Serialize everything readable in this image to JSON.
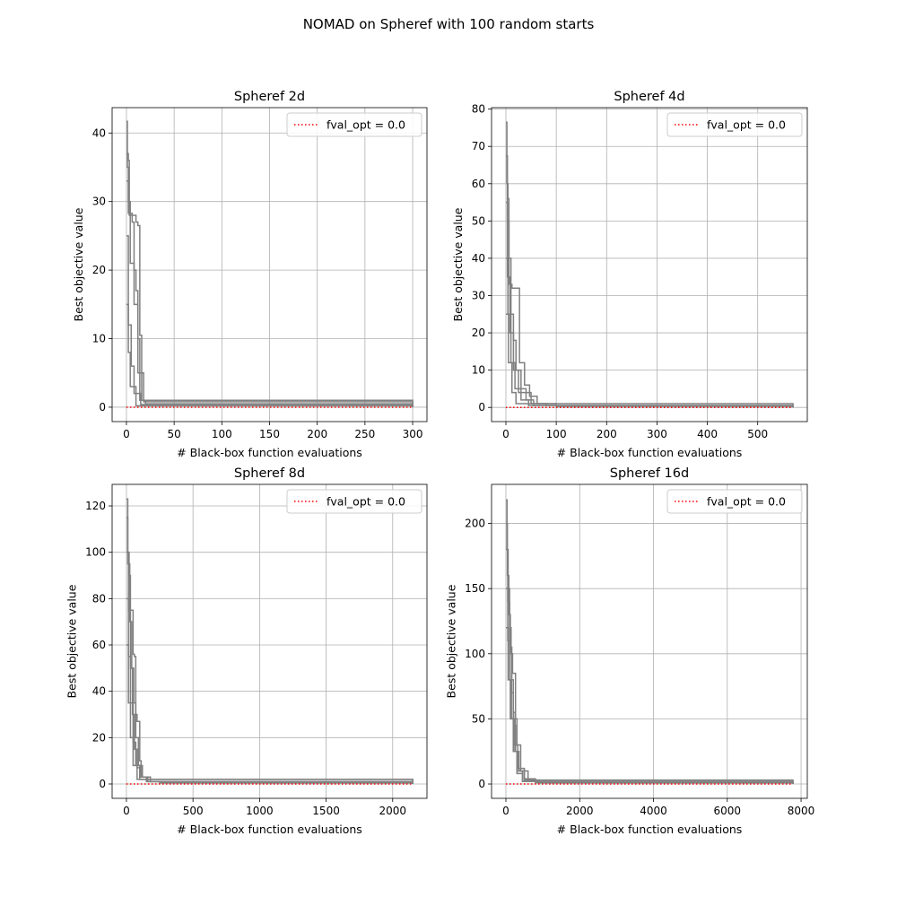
{
  "figure": {
    "suptitle": "NOMAD on Spheref with 100 random starts"
  },
  "chart_data": [
    {
      "type": "line",
      "title": "Spheref 2d",
      "xlabel": "# Black-box function evaluations",
      "ylabel": "Best objective value",
      "xlim": [
        -15,
        315
      ],
      "ylim": [
        -2.1,
        43.7
      ],
      "xticks": [
        0,
        50,
        100,
        150,
        200,
        250,
        300
      ],
      "yticks": [
        0,
        10,
        20,
        30,
        40
      ],
      "grid": true,
      "legend": {
        "position": "top-right",
        "entries": [
          {
            "label": "fval_opt = 0.0",
            "color": "#ff0000",
            "style": "dotted"
          }
        ]
      },
      "series": [
        {
          "color": "#808080",
          "values": [
            [
              0,
              41.7
            ],
            [
              1,
              37
            ],
            [
              2,
              36
            ],
            [
              3,
              28
            ],
            [
              10,
              27
            ],
            [
              12,
              26.5
            ],
            [
              14,
              10.5
            ],
            [
              16,
              1
            ],
            [
              20,
              0.5
            ],
            [
              300,
              0
            ]
          ]
        },
        {
          "color": "#808080",
          "values": [
            [
              0,
              37
            ],
            [
              1,
              35
            ],
            [
              2,
              28.3
            ],
            [
              4,
              28.3
            ],
            [
              6,
              27
            ],
            [
              8,
              20
            ],
            [
              10,
              17
            ],
            [
              12,
              10
            ],
            [
              14,
              1
            ],
            [
              300,
              0
            ]
          ]
        },
        {
          "color": "#808080",
          "values": [
            [
              0,
              33
            ],
            [
              2,
              30
            ],
            [
              4,
              21
            ],
            [
              8,
              15
            ],
            [
              12,
              5
            ],
            [
              18,
              0.8
            ],
            [
              300,
              0
            ]
          ]
        },
        {
          "color": "#808080",
          "values": [
            [
              0,
              25
            ],
            [
              2,
              12
            ],
            [
              5,
              6
            ],
            [
              8,
              2
            ],
            [
              15,
              0.4
            ],
            [
              300,
              0
            ]
          ]
        },
        {
          "color": "#808080",
          "values": [
            [
              0,
              15
            ],
            [
              2,
              8
            ],
            [
              4,
              3
            ],
            [
              10,
              0.2
            ],
            [
              300,
              0
            ]
          ]
        },
        {
          "color": "#ff0000",
          "style": "dotted",
          "values": [
            [
              0,
              0
            ],
            [
              300,
              0
            ]
          ]
        }
      ]
    },
    {
      "type": "line",
      "title": "Spheref 4d",
      "xlabel": "# Black-box function evaluations",
      "ylabel": "Best objective value",
      "xlim": [
        -28.5,
        598.5
      ],
      "ylim": [
        -3.8,
        80.4
      ],
      "xticks": [
        0,
        100,
        200,
        300,
        400,
        500
      ],
      "yticks": [
        0,
        10,
        20,
        30,
        40,
        50,
        60,
        70,
        80
      ],
      "grid": true,
      "legend": {
        "position": "top-right",
        "entries": [
          {
            "label": "fval_opt = 0.0",
            "color": "#ff0000",
            "style": "dotted"
          }
        ]
      },
      "series": [
        {
          "color": "#808080",
          "values": [
            [
              0,
              76.5
            ],
            [
              2,
              60
            ],
            [
              4,
              56
            ],
            [
              6,
              33
            ],
            [
              12,
              32
            ],
            [
              25,
              32
            ],
            [
              27,
              12
            ],
            [
              35,
              12
            ],
            [
              37,
              6
            ],
            [
              45,
              6
            ],
            [
              47,
              3
            ],
            [
              60,
              3
            ],
            [
              62,
              1
            ],
            [
              80,
              0.5
            ],
            [
              570,
              0
            ]
          ]
        },
        {
          "color": "#808080",
          "values": [
            [
              0,
              67.5
            ],
            [
              3,
              50
            ],
            [
              6,
              40
            ],
            [
              10,
              25
            ],
            [
              15,
              18
            ],
            [
              20,
              10
            ],
            [
              30,
              5
            ],
            [
              40,
              2
            ],
            [
              55,
              0.5
            ],
            [
              570,
              0
            ]
          ]
        },
        {
          "color": "#808080",
          "values": [
            [
              0,
              55
            ],
            [
              3,
              35
            ],
            [
              8,
              20
            ],
            [
              15,
              10
            ],
            [
              25,
              4
            ],
            [
              50,
              1
            ],
            [
              100,
              0.3
            ],
            [
              570,
              0
            ]
          ]
        },
        {
          "color": "#808080",
          "values": [
            [
              0,
              40
            ],
            [
              4,
              25
            ],
            [
              10,
              12
            ],
            [
              18,
              5
            ],
            [
              30,
              2
            ],
            [
              45,
              0.5
            ],
            [
              570,
              0
            ]
          ]
        },
        {
          "color": "#808080",
          "values": [
            [
              0,
              25
            ],
            [
              5,
              12
            ],
            [
              12,
              4
            ],
            [
              20,
              1
            ],
            [
              570,
              0
            ]
          ]
        },
        {
          "color": "#ff0000",
          "style": "dotted",
          "values": [
            [
              0,
              0
            ],
            [
              570,
              0
            ]
          ]
        }
      ]
    },
    {
      "type": "line",
      "title": "Spheref 8d",
      "xlabel": "# Black-box function evaluations",
      "ylabel": "Best objective value",
      "xlim": [
        -107.5,
        2257.5
      ],
      "ylim": [
        -6.2,
        129.3
      ],
      "xticks": [
        0,
        500,
        1000,
        1500,
        2000
      ],
      "yticks": [
        0,
        20,
        40,
        60,
        80,
        100,
        120
      ],
      "grid": true,
      "legend": {
        "position": "top-right",
        "entries": [
          {
            "label": "fval_opt = 0.0",
            "color": "#ff0000",
            "style": "dotted"
          }
        ]
      },
      "series": [
        {
          "color": "#808080",
          "values": [
            [
              0,
              123
            ],
            [
              10,
              100
            ],
            [
              20,
              90
            ],
            [
              30,
              75
            ],
            [
              45,
              75
            ],
            [
              50,
              56
            ],
            [
              60,
              55
            ],
            [
              70,
              30
            ],
            [
              80,
              27
            ],
            [
              100,
              10
            ],
            [
              110,
              3
            ],
            [
              150,
              3
            ],
            [
              160,
              1
            ],
            [
              250,
              0.5
            ],
            [
              2150,
              0
            ]
          ]
        },
        {
          "color": "#808080",
          "values": [
            [
              0,
              115
            ],
            [
              10,
              95
            ],
            [
              25,
              70
            ],
            [
              40,
              50
            ],
            [
              55,
              35
            ],
            [
              70,
              20
            ],
            [
              90,
              8
            ],
            [
              120,
              3
            ],
            [
              180,
              1
            ],
            [
              2150,
              0
            ]
          ]
        },
        {
          "color": "#808080",
          "values": [
            [
              0,
              100
            ],
            [
              15,
              75
            ],
            [
              30,
              50
            ],
            [
              45,
              30
            ],
            [
              60,
              15
            ],
            [
              80,
              7
            ],
            [
              100,
              3
            ],
            [
              150,
              1
            ],
            [
              2150,
              0
            ]
          ]
        },
        {
          "color": "#808080",
          "values": [
            [
              0,
              80
            ],
            [
              15,
              55
            ],
            [
              30,
              35
            ],
            [
              50,
              18
            ],
            [
              70,
              8
            ],
            [
              100,
              2
            ],
            [
              2150,
              0
            ]
          ]
        },
        {
          "color": "#808080",
          "values": [
            [
              0,
              60
            ],
            [
              15,
              35
            ],
            [
              30,
              20
            ],
            [
              50,
              8
            ],
            [
              80,
              2
            ],
            [
              2150,
              0
            ]
          ]
        },
        {
          "color": "#ff0000",
          "style": "dotted",
          "values": [
            [
              0,
              0
            ],
            [
              2150,
              0
            ]
          ]
        }
      ]
    },
    {
      "type": "line",
      "title": "Spheref 16d",
      "xlabel": "# Black-box function evaluations",
      "ylabel": "Best objective value",
      "xlim": [
        -389,
        8169
      ],
      "ylim": [
        -11,
        230
      ],
      "xticks": [
        0,
        2000,
        4000,
        6000,
        8000
      ],
      "yticks": [
        0,
        50,
        100,
        150,
        200
      ],
      "grid": true,
      "legend": {
        "position": "top-right",
        "entries": [
          {
            "label": "fval_opt = 0.0",
            "color": "#ff0000",
            "style": "dotted"
          }
        ]
      },
      "series": [
        {
          "color": "#808080",
          "values": [
            [
              0,
              218
            ],
            [
              30,
              180
            ],
            [
              60,
              150
            ],
            [
              100,
              120
            ],
            [
              140,
              100
            ],
            [
              180,
              85
            ],
            [
              220,
              85
            ],
            [
              260,
              50
            ],
            [
              300,
              30
            ],
            [
              400,
              10
            ],
            [
              600,
              3
            ],
            [
              900,
              1
            ],
            [
              7780,
              0
            ]
          ]
        },
        {
          "color": "#808080",
          "values": [
            [
              0,
              200
            ],
            [
              40,
              160
            ],
            [
              80,
              130
            ],
            [
              120,
              105
            ],
            [
              160,
              80
            ],
            [
              200,
              55
            ],
            [
              250,
              30
            ],
            [
              320,
              12
            ],
            [
              500,
              4
            ],
            [
              800,
              1
            ],
            [
              7780,
              0
            ]
          ]
        },
        {
          "color": "#808080",
          "values": [
            [
              0,
              180
            ],
            [
              50,
              140
            ],
            [
              100,
              100
            ],
            [
              150,
              70
            ],
            [
              200,
              45
            ],
            [
              260,
              25
            ],
            [
              350,
              10
            ],
            [
              500,
              3
            ],
            [
              7780,
              0
            ]
          ]
        },
        {
          "color": "#808080",
          "values": [
            [
              0,
              150
            ],
            [
              50,
              110
            ],
            [
              100,
              80
            ],
            [
              150,
              50
            ],
            [
              220,
              25
            ],
            [
              300,
              10
            ],
            [
              450,
              2
            ],
            [
              7780,
              0
            ]
          ]
        },
        {
          "color": "#808080",
          "values": [
            [
              0,
              120
            ],
            [
              60,
              80
            ],
            [
              120,
              50
            ],
            [
              200,
              25
            ],
            [
              300,
              8
            ],
            [
              450,
              2
            ],
            [
              7780,
              0
            ]
          ]
        },
        {
          "color": "#ff0000",
          "style": "dotted",
          "values": [
            [
              0,
              0
            ],
            [
              7780,
              0
            ]
          ]
        }
      ]
    }
  ]
}
